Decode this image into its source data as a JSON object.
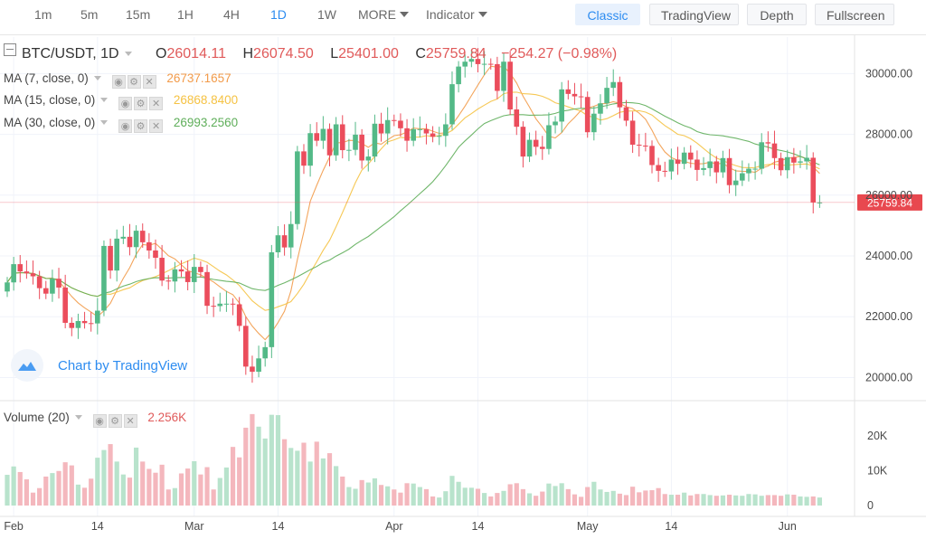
{
  "toolbar": {
    "intervals": [
      "1m",
      "5m",
      "15m",
      "1H",
      "4H",
      "1D",
      "1W"
    ],
    "active_interval": "1D",
    "more_label": "MORE",
    "indicator_label": "Indicator",
    "view_buttons": [
      "Classic",
      "TradingView",
      "Depth",
      "Fullscreen"
    ],
    "active_view": "Classic"
  },
  "header": {
    "symbol": "BTC/USDT, 1D",
    "open_label": "O",
    "open": "26014.11",
    "high_label": "H",
    "high": "26074.50",
    "low_label": "L",
    "low": "25401.00",
    "close_label": "C",
    "close": "25759.84",
    "change": "−254.27 (−0.98%)"
  },
  "indicators": [
    {
      "label": "MA (7, close, 0)",
      "value": "26737.1657",
      "color": "#f29b4a"
    },
    {
      "label": "MA (15, close, 0)",
      "value": "26868.8400",
      "color": "#f5c243"
    },
    {
      "label": "MA (30, close, 0)",
      "value": "26993.2560",
      "color": "#5fae5a"
    }
  ],
  "volume_legend": {
    "label": "Volume (20)",
    "value": "2.256K"
  },
  "watermark": "Chart by TradingView",
  "last_price_tag": "25759.84",
  "colors": {
    "up": "#53b987",
    "down": "#eb4d5c",
    "accent": "#2d8cf0"
  },
  "chart_data": {
    "type": "candlestick",
    "title": "BTC/USDT, 1D",
    "price_axis": {
      "ticks": [
        20000,
        22000,
        24000,
        26000,
        28000,
        30000
      ],
      "tick_labels": [
        "20000.00",
        "22000.00",
        "24000.00",
        "26000.00",
        "28000.00",
        "30000.00"
      ],
      "ylim": [
        19300,
        31200
      ]
    },
    "volume_axis": {
      "ticks": [
        0,
        10000,
        20000
      ],
      "tick_labels": [
        "0",
        "10K",
        "20K"
      ],
      "ylim": [
        0,
        28500
      ]
    },
    "x_tick_labels": [
      "Feb",
      "14",
      "Mar",
      "14",
      "Apr",
      "14",
      "May",
      "14",
      "Jun"
    ],
    "x_tick_dates": [
      "2023-02-01",
      "2023-02-14",
      "2023-03-01",
      "2023-03-14",
      "2023-04-01",
      "2023-04-14",
      "2023-05-01",
      "2023-05-14",
      "2023-06-01"
    ],
    "last_close": 25759.84,
    "dates": [
      "2023-01-31",
      "2023-02-01",
      "2023-02-02",
      "2023-02-03",
      "2023-02-04",
      "2023-02-05",
      "2023-02-06",
      "2023-02-07",
      "2023-02-08",
      "2023-02-09",
      "2023-02-10",
      "2023-02-11",
      "2023-02-12",
      "2023-02-13",
      "2023-02-14",
      "2023-02-15",
      "2023-02-16",
      "2023-02-17",
      "2023-02-18",
      "2023-02-19",
      "2023-02-20",
      "2023-02-21",
      "2023-02-22",
      "2023-02-23",
      "2023-02-24",
      "2023-02-25",
      "2023-02-26",
      "2023-02-27",
      "2023-02-28",
      "2023-03-01",
      "2023-03-02",
      "2023-03-03",
      "2023-03-04",
      "2023-03-05",
      "2023-03-06",
      "2023-03-07",
      "2023-03-08",
      "2023-03-09",
      "2023-03-10",
      "2023-03-11",
      "2023-03-12",
      "2023-03-13",
      "2023-03-14",
      "2023-03-15",
      "2023-03-16",
      "2023-03-17",
      "2023-03-18",
      "2023-03-19",
      "2023-03-20",
      "2023-03-21",
      "2023-03-22",
      "2023-03-23",
      "2023-03-24",
      "2023-03-25",
      "2023-03-26",
      "2023-03-27",
      "2023-03-28",
      "2023-03-29",
      "2023-03-30",
      "2023-03-31",
      "2023-04-01",
      "2023-04-02",
      "2023-04-03",
      "2023-04-04",
      "2023-04-05",
      "2023-04-06",
      "2023-04-07",
      "2023-04-08",
      "2023-04-09",
      "2023-04-10",
      "2023-04-11",
      "2023-04-12",
      "2023-04-13",
      "2023-04-14",
      "2023-04-15",
      "2023-04-16",
      "2023-04-17",
      "2023-04-18",
      "2023-04-19",
      "2023-04-20",
      "2023-04-21",
      "2023-04-22",
      "2023-04-23",
      "2023-04-24",
      "2023-04-25",
      "2023-04-26",
      "2023-04-27",
      "2023-04-28",
      "2023-04-29",
      "2023-04-30",
      "2023-05-01",
      "2023-05-02",
      "2023-05-03",
      "2023-05-04",
      "2023-05-05",
      "2023-05-06",
      "2023-05-07",
      "2023-05-08",
      "2023-05-09",
      "2023-05-10",
      "2023-05-11",
      "2023-05-12",
      "2023-05-13",
      "2023-05-14",
      "2023-05-15",
      "2023-05-16",
      "2023-05-17",
      "2023-05-18",
      "2023-05-19",
      "2023-05-20",
      "2023-05-21",
      "2023-05-22",
      "2023-05-23",
      "2023-05-24",
      "2023-05-25",
      "2023-05-26",
      "2023-05-27",
      "2023-05-28",
      "2023-05-29",
      "2023-05-30",
      "2023-05-31",
      "2023-06-01",
      "2023-06-02",
      "2023-06-03",
      "2023-06-04",
      "2023-06-05",
      "2023-06-06"
    ],
    "close": [
      23130,
      23730,
      23490,
      23430,
      23330,
      22940,
      22760,
      23250,
      22960,
      21800,
      21630,
      21860,
      21790,
      21780,
      22200,
      24330,
      23520,
      24570,
      24630,
      24290,
      24830,
      24450,
      24180,
      23940,
      23190,
      23160,
      23560,
      23490,
      23140,
      23640,
      23470,
      22360,
      22350,
      22430,
      22430,
      22410,
      21700,
      20360,
      20190,
      20630,
      21000,
      24120,
      24680,
      24280,
      25050,
      27440,
      26970,
      28040,
      27790,
      28180,
      27310,
      28330,
      27480,
      27490,
      27990,
      27140,
      27270,
      28350,
      28030,
      28470,
      28450,
      28200,
      27790,
      28170,
      28170,
      28030,
      27920,
      27950,
      28330,
      29650,
      30230,
      30390,
      30480,
      30310,
      30320,
      30310,
      29430,
      30390,
      28820,
      28250,
      27270,
      27820,
      27590,
      27520,
      28300,
      28420,
      29480,
      29330,
      29250,
      29230,
      28070,
      28680,
      29020,
      29530,
      29720,
      28890,
      28450,
      27660,
      27630,
      27620,
      26990,
      26800,
      26780,
      27170,
      27030,
      27400,
      27170,
      26830,
      26890,
      27110,
      26750,
      27220,
      26330,
      26480,
      26720,
      26870,
      26870,
      27740,
      27700,
      27220,
      26820,
      27250,
      27070,
      27110,
      27230,
      25760,
      25760
    ],
    "volume": [
      8800,
      11200,
      9600,
      7500,
      3700,
      5000,
      8300,
      9300,
      9900,
      12400,
      11500,
      6000,
      5100,
      7700,
      13700,
      15900,
      17600,
      12600,
      8900,
      8000,
      16600,
      12600,
      10500,
      9400,
      11700,
      4600,
      5000,
      9200,
      10600,
      12700,
      8900,
      11000,
      4600,
      7900,
      10900,
      16800,
      13800,
      22300,
      26200,
      22600,
      19200,
      26000,
      25900,
      19000,
      16500,
      15700,
      18000,
      12600,
      18300,
      13500,
      15000,
      11300,
      8300,
      5300,
      4800,
      7300,
      6600,
      7800,
      5900,
      5500,
      4600,
      3700,
      6400,
      6300,
      5300,
      4700,
      2600,
      2300,
      4100,
      8500,
      6800,
      5100,
      5100,
      4800,
      3600,
      2600,
      3600,
      4200,
      6100,
      6400,
      4700,
      3500,
      2800,
      4000,
      6300,
      5600,
      6400,
      4700,
      3200,
      2500,
      5300,
      6800,
      4600,
      3900,
      4200,
      3400,
      3000,
      5400,
      3800,
      4300,
      4400,
      5000,
      3300,
      3100,
      3100,
      3700,
      2900,
      3300,
      3300,
      3000,
      2800,
      2900,
      3100,
      2900,
      2800,
      3300,
      3200,
      2800,
      3000,
      3000,
      2800,
      3200,
      3100,
      2600,
      2500,
      2600,
      2300
    ],
    "series": [
      {
        "name": "MA (7, close, 0)",
        "window": 7
      },
      {
        "name": "MA (15, close, 0)",
        "window": 15
      },
      {
        "name": "MA (30, close, 0)",
        "window": 30
      },
      {
        "name": "Volume (20)"
      }
    ],
    "grid": true,
    "legend_position": "top-left"
  }
}
